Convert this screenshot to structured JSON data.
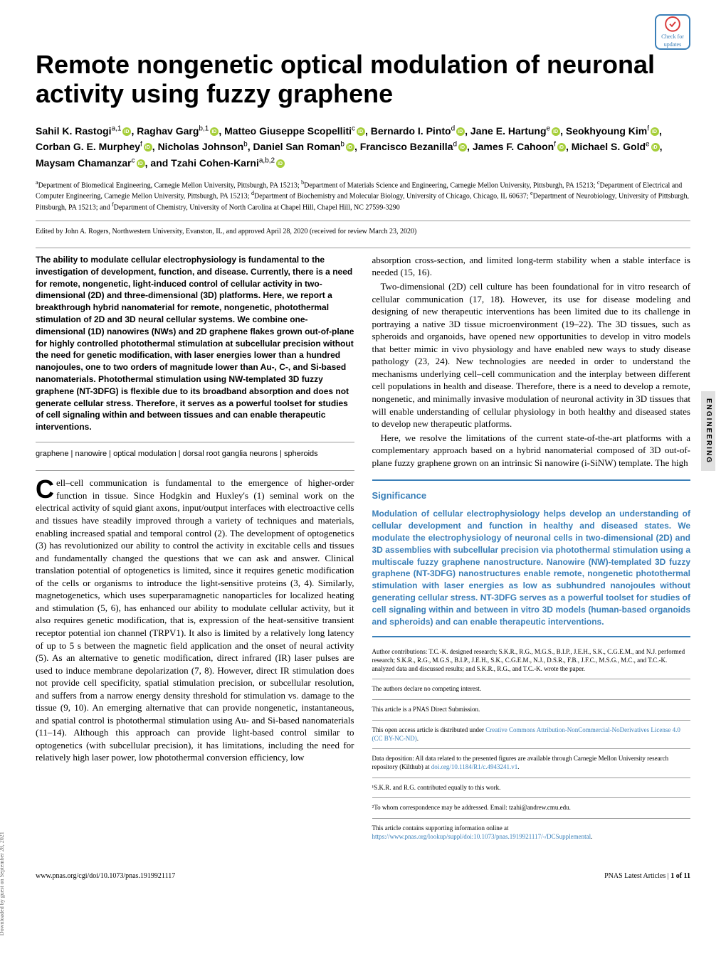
{
  "check_updates": {
    "line1": "Check for",
    "line2": "updates"
  },
  "title": "Remote nongenetic optical modulation of neuronal activity using fuzzy graphene",
  "authors_html": "Sahil K. Rastogi<sup>a,1</sup>◉, Raghav Garg<sup>b,1</sup>◉, Matteo Giuseppe Scopelliti<sup>c</sup>◉, Bernardo I. Pinto<sup>d</sup>◉, Jane E. Hartung<sup>e</sup>◉, Seokhyoung Kim<sup>f</sup>◉, Corban G. E. Murphey<sup>f</sup>◉, Nicholas Johnson<sup>b</sup>, Daniel San Roman<sup>b</sup>◉, Francisco Bezanilla<sup>d</sup>◉, James F. Cahoon<sup>f</sup>◉, Michael S. Gold<sup>e</sup>◉, Maysam Chamanzar<sup>c</sup>◉, and Tzahi Cohen-Karni<sup>a,b,2</sup>◉",
  "affiliations": "<sup>a</sup>Department of Biomedical Engineering, Carnegie Mellon University, Pittsburgh, PA 15213; <sup>b</sup>Department of Materials Science and Engineering, Carnegie Mellon University, Pittsburgh, PA 15213; <sup>c</sup>Department of Electrical and Computer Engineering, Carnegie Mellon University, Pittsburgh, PA 15213; <sup>d</sup>Department of Biochemistry and Molecular Biology, University of Chicago, Chicago, IL 60637; <sup>e</sup>Department of Neurobiology, University of Pittsburgh, Pittsburgh, PA 15213; and <sup>f</sup>Department of Chemistry, University of North Carolina at Chapel Hill, Chapel Hill, NC 27599-3290",
  "edited": "Edited by John A. Rogers, Northwestern University, Evanston, IL, and approved April 28, 2020 (received for review March 23, 2020)",
  "abstract": "The ability to modulate cellular electrophysiology is fundamental to the investigation of development, function, and disease. Currently, there is a need for remote, nongenetic, light-induced control of cellular activity in two-dimensional (2D) and three-dimensional (3D) platforms. Here, we report a breakthrough hybrid nanomaterial for remote, nongenetic, photothermal stimulation of 2D and 3D neural cellular systems. We combine one-dimensional (1D) nanowires (NWs) and 2D graphene flakes grown out-of-plane for highly controlled photothermal stimulation at subcellular precision without the need for genetic modification, with laser energies lower than a hundred nanojoules, one to two orders of magnitude lower than Au-, C-, and Si-based nanomaterials. Photothermal stimulation using NW-templated 3D fuzzy graphene (NT-3DFG) is flexible due to its broadband absorption and does not generate cellular stress. Therefore, it serves as a powerful toolset for studies of cell signaling within and between tissues and can enable therapeutic interventions.",
  "keywords": "graphene | nanowire | optical modulation | dorsal root ganglia neurons | spheroids",
  "body_col1": "ell–cell communication is fundamental to the emergence of higher-order function in tissue. Since Hodgkin and Huxley's (1) seminal work on the electrical activity of squid giant axons, input/output interfaces with electroactive cells and tissues have steadily improved through a variety of techniques and materials, enabling increased spatial and temporal control (2). The development of optogenetics (3) has revolutionized our ability to control the activity in excitable cells and tissues and fundamentally changed the questions that we can ask and answer. Clinical translation potential of optogenetics is limited, since it requires genetic modification of the cells or organisms to introduce the light-sensitive proteins (3, 4). Similarly, magnetogenetics, which uses superparamagnetic nanoparticles for localized heating and stimulation (5, 6), has enhanced our ability to modulate cellular activity, but it also requires genetic modification, that is, expression of the heat-sensitive transient receptor potential ion channel (TRPV1). It also is limited by a relatively long latency of up to 5 s between the magnetic field application and the onset of neural activity (5). As an alternative to genetic modification, direct infrared (IR) laser pulses are used to induce membrane depolarization (7, 8). However, direct IR stimulation does not provide cell specificity, spatial stimulation precision, or subcellular resolution, and suffers from a narrow energy density threshold for stimulation vs. damage to the tissue (9, 10). An emerging alternative that can provide nongenetic, instantaneous, and spatial control is photothermal stimulation using Au- and Si-based nanomaterials (11–14). Although this approach can provide light-based control similar to optogenetics (with subcellular precision), it has limitations, including the need for relatively high laser power, low photothermal conversion efficiency, low",
  "body_col2_p1": "absorption cross-section, and limited long-term stability when a stable interface is needed (15, 16).",
  "body_col2_p2": "Two-dimensional (2D) cell culture has been foundational for in vitro research of cellular communication (17, 18). However, its use for disease modeling and designing of new therapeutic interventions has been limited due to its challenge in portraying a native 3D tissue microenvironment (19–22). The 3D tissues, such as spheroids and organoids, have opened new opportunities to develop in vitro models that better mimic in vivo physiology and have enabled new ways to study disease pathology (23, 24). New technologies are needed in order to understand the mechanisms underlying cell–cell communication and the interplay between different cell populations in health and disease. Therefore, there is a need to develop a remote, nongenetic, and minimally invasive modulation of neuronal activity in 3D tissues that will enable understanding of cellular physiology in both healthy and diseased states to develop new therapeutic platforms.",
  "body_col2_p3": "Here, we resolve the limitations of the current state-of-the-art platforms with a complementary approach based on a hybrid nanomaterial composed of 3D out-of-plane fuzzy graphene grown on an intrinsic Si nanowire (i-SiNW) template. The high",
  "significance": {
    "title": "Significance",
    "text": "Modulation of cellular electrophysiology helps develop an understanding of cellular development and function in healthy and diseased states. We modulate the electrophysiology of neuronal cells in two-dimensional (2D) and 3D assemblies with subcellular precision via photothermal stimulation using a multiscale fuzzy graphene nanostructure. Nanowire (NW)-templated 3D fuzzy graphene (NT-3DFG) nanostructures enable remote, nongenetic photothermal stimulation with laser energies as low as subhundred nanojoules without generating cellular stress. NT-3DFG serves as a powerful toolset for studies of cell signaling within and between in vitro 3D models (human-based organoids and spheroids) and can enable therapeutic interventions."
  },
  "footnotes": {
    "contributions": "Author contributions: T.C.-K. designed research; S.K.R., R.G., M.G.S., B.I.P., J.E.H., S.K., C.G.E.M., and N.J. performed research; S.K.R., R.G., M.G.S., B.I.P., J.E.H., S.K., C.G.E.M., N.J., D.S.R., F.B., J.F.C., M.S.G., M.C., and T.C.-K. analyzed data and discussed results; and S.K.R., R.G., and T.C.-K. wrote the paper.",
    "competing": "The authors declare no competing interest.",
    "direct": "This article is a PNAS Direct Submission.",
    "openaccess": "This open access article is distributed under ",
    "openaccess_link": "Creative Commons Attribution-NonCommercial-NoDerivatives License 4.0 (CC BY-NC-ND)",
    "data": "Data deposition: All data related to the presented figures are available through Carnegie Mellon University research repository (Kilthub) at ",
    "data_link": "doi.org/10.1184/R1/c.4943241.v1",
    "equal": "¹S.K.R. and R.G. contributed equally to this work.",
    "correspond": "²To whom correspondence may be addressed. Email: tzahi@andrew.cmu.edu.",
    "supporting": "This article contains supporting information online at ",
    "supporting_link": "https://www.pnas.org/lookup/suppl/doi:10.1073/pnas.1919921117/-/DCSupplemental"
  },
  "footer": {
    "left": "www.pnas.org/cgi/doi/10.1073/pnas.1919921117",
    "right_pre": "PNAS Latest Articles | ",
    "right_page": "1 of 11"
  },
  "side_label": "ENGINEERING",
  "download_label": "Downloaded by guest on September 28, 2021",
  "colors": {
    "accent": "#3a7fb8",
    "orcid_green": "#a6ce39",
    "text": "#000000",
    "background": "#ffffff"
  }
}
